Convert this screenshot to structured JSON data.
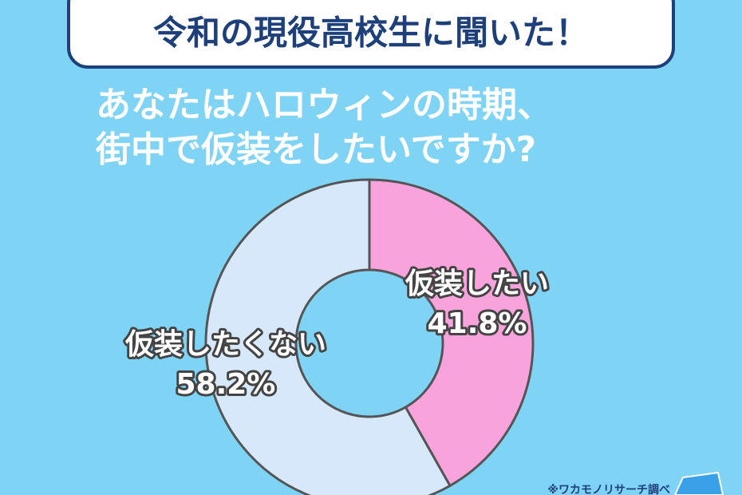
{
  "chart_data": {
    "type": "donut",
    "title": "令和の現役高校生に聞いた！",
    "subtitle": [
      "あなたはハロウィンの時期、",
      "街中で仮装をしたいですか?"
    ],
    "categories": [
      "仮装したい",
      "仮装したくない"
    ],
    "values": [
      41.8,
      58.2
    ],
    "value_labels": [
      "41.8%",
      "58.2%"
    ],
    "colors": [
      "#f9a3dd",
      "#d7e8fb"
    ],
    "annotations": [
      "※ワカモノリサーチ調べ"
    ]
  }
}
